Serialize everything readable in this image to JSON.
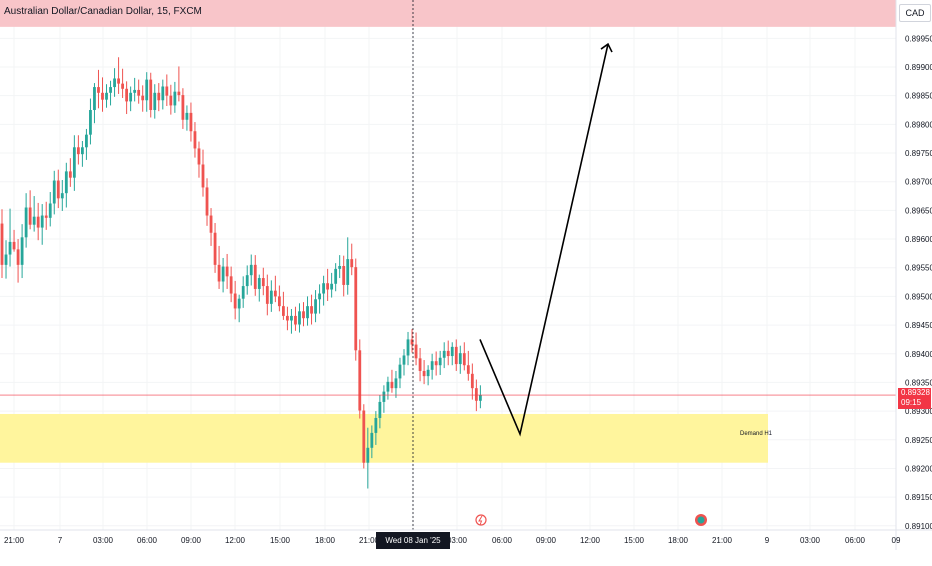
{
  "header": {
    "title": "Australian Dollar/Canadian Dollar, 15, FXCM",
    "currency": "CAD"
  },
  "price_badge": {
    "price": "0.89328",
    "countdown": "09:15"
  },
  "crosshair_time": "Wed 08 Jan '25   00:00",
  "zones": {
    "demand_label": "Demand H1"
  },
  "icons": [
    "lightning-event-icon",
    "news-event-icon"
  ],
  "colors": {
    "up": "#26a69a",
    "down": "#ef5350",
    "zone_top": "#f8c5c9",
    "zone_demand": "#fff59d",
    "price_line": "#f23645"
  },
  "chart_data": {
    "type": "candlestick",
    "title": "Australian Dollar/Canadian Dollar, 15, FXCM",
    "xlabel": "",
    "ylabel": "",
    "ylim": [
      0.8909,
      0.9003
    ],
    "y_ticks": [
      "0.89950",
      "0.89900",
      "0.89850",
      "0.89800",
      "0.89750",
      "0.89700",
      "0.89650",
      "0.89600",
      "0.89550",
      "0.89500",
      "0.89450",
      "0.89400",
      "0.89350",
      "0.89300",
      "0.89250",
      "0.89200",
      "0.89150",
      "0.89100"
    ],
    "x_ticks": [
      "21:00",
      "7",
      "03:00",
      "06:00",
      "09:00",
      "12:00",
      "15:00",
      "18:00",
      "21:00",
      "00:00",
      "03:00",
      "06:00",
      "09:00",
      "12:00",
      "15:00",
      "18:00",
      "21:00",
      "9",
      "03:00",
      "06:00",
      "09"
    ],
    "last_price": 0.89328,
    "crosshair_x": "Wed 08 Jan '25 00:00",
    "supply_zone": [
      0.8997,
      0.9003
    ],
    "demand_zone": [
      0.8921,
      0.89295
    ],
    "demand_label": "Demand H1",
    "projection": [
      [
        0.89425,
        0.8926
      ],
      [
        0.8926,
        0.8994
      ]
    ],
    "candles": [
      [
        0.89627,
        0.89652,
        0.89532,
        0.89555
      ],
      [
        0.89555,
        0.89598,
        0.89531,
        0.89573
      ],
      [
        0.89573,
        0.89653,
        0.89552,
        0.89595
      ],
      [
        0.89595,
        0.89616,
        0.89578,
        0.89582
      ],
      [
        0.89582,
        0.896,
        0.89524,
        0.89555
      ],
      [
        0.89555,
        0.89626,
        0.89532,
        0.89603
      ],
      [
        0.89603,
        0.8968,
        0.89585,
        0.89655
      ],
      [
        0.89655,
        0.89685,
        0.89617,
        0.89625
      ],
      [
        0.89625,
        0.89675,
        0.89613,
        0.89639
      ],
      [
        0.89639,
        0.89663,
        0.89598,
        0.8962
      ],
      [
        0.8962,
        0.89661,
        0.8959,
        0.89641
      ],
      [
        0.89641,
        0.89665,
        0.89616,
        0.89637
      ],
      [
        0.89637,
        0.89682,
        0.89622,
        0.89662
      ],
      [
        0.89662,
        0.89719,
        0.89643,
        0.89702
      ],
      [
        0.89702,
        0.89721,
        0.89654,
        0.89671
      ],
      [
        0.89671,
        0.89703,
        0.89649,
        0.8968
      ],
      [
        0.8968,
        0.89733,
        0.89655,
        0.89718
      ],
      [
        0.89718,
        0.89741,
        0.89691,
        0.89707
      ],
      [
        0.89707,
        0.89781,
        0.89684,
        0.8976
      ],
      [
        0.8976,
        0.89781,
        0.8973,
        0.89748
      ],
      [
        0.89748,
        0.89771,
        0.89726,
        0.8976
      ],
      [
        0.8976,
        0.89792,
        0.89738,
        0.89782
      ],
      [
        0.89782,
        0.89845,
        0.89765,
        0.89825
      ],
      [
        0.89825,
        0.89872,
        0.89802,
        0.89865
      ],
      [
        0.89865,
        0.89895,
        0.89828,
        0.89855
      ],
      [
        0.89855,
        0.89882,
        0.89822,
        0.89843
      ],
      [
        0.89843,
        0.8987,
        0.89829,
        0.89855
      ],
      [
        0.89855,
        0.89876,
        0.89833,
        0.89865
      ],
      [
        0.89865,
        0.89898,
        0.89848,
        0.8988
      ],
      [
        0.8988,
        0.89917,
        0.89853,
        0.89871
      ],
      [
        0.89871,
        0.89897,
        0.89846,
        0.89862
      ],
      [
        0.89862,
        0.89875,
        0.89818,
        0.8984
      ],
      [
        0.8984,
        0.89866,
        0.89823,
        0.89855
      ],
      [
        0.89855,
        0.89881,
        0.8984,
        0.8986
      ],
      [
        0.8986,
        0.89878,
        0.89836,
        0.8985
      ],
      [
        0.8985,
        0.89868,
        0.89822,
        0.89842
      ],
      [
        0.89842,
        0.89891,
        0.89822,
        0.89878
      ],
      [
        0.89878,
        0.8989,
        0.89812,
        0.89825
      ],
      [
        0.89825,
        0.8987,
        0.8981,
        0.89855
      ],
      [
        0.89855,
        0.89872,
        0.89823,
        0.89842
      ],
      [
        0.89842,
        0.89878,
        0.89826,
        0.89866
      ],
      [
        0.89866,
        0.89887,
        0.89832,
        0.8985
      ],
      [
        0.8985,
        0.89869,
        0.89817,
        0.89833
      ],
      [
        0.89833,
        0.89874,
        0.8982,
        0.89857
      ],
      [
        0.89857,
        0.89901,
        0.8984,
        0.89851
      ],
      [
        0.89851,
        0.89863,
        0.89792,
        0.89808
      ],
      [
        0.89808,
        0.89833,
        0.89789,
        0.8982
      ],
      [
        0.8982,
        0.89838,
        0.8977,
        0.89788
      ],
      [
        0.89788,
        0.89804,
        0.89742,
        0.89758
      ],
      [
        0.89758,
        0.8977,
        0.89707,
        0.8973
      ],
      [
        0.8973,
        0.89756,
        0.89674,
        0.8969
      ],
      [
        0.8969,
        0.89706,
        0.89623,
        0.89641
      ],
      [
        0.89641,
        0.89654,
        0.89588,
        0.89611
      ],
      [
        0.89611,
        0.89628,
        0.89541,
        0.89555
      ],
      [
        0.89555,
        0.89588,
        0.89513,
        0.89526
      ],
      [
        0.89526,
        0.89567,
        0.89507,
        0.89552
      ],
      [
        0.89552,
        0.89574,
        0.89513,
        0.89535
      ],
      [
        0.89535,
        0.89552,
        0.8949,
        0.89505
      ],
      [
        0.89505,
        0.89527,
        0.8946,
        0.89479
      ],
      [
        0.89479,
        0.89503,
        0.89455,
        0.89496
      ],
      [
        0.89496,
        0.89535,
        0.8948,
        0.89518
      ],
      [
        0.89518,
        0.89554,
        0.89503,
        0.89537
      ],
      [
        0.89537,
        0.89573,
        0.89519,
        0.89555
      ],
      [
        0.89555,
        0.89572,
        0.89501,
        0.89513
      ],
      [
        0.89513,
        0.89538,
        0.89491,
        0.89532
      ],
      [
        0.89532,
        0.8955,
        0.89502,
        0.89518
      ],
      [
        0.89518,
        0.89538,
        0.89467,
        0.89487
      ],
      [
        0.89487,
        0.89528,
        0.89473,
        0.8951
      ],
      [
        0.8951,
        0.89536,
        0.8949,
        0.895
      ],
      [
        0.895,
        0.89519,
        0.89474,
        0.89483
      ],
      [
        0.89483,
        0.89508,
        0.89459,
        0.89466
      ],
      [
        0.89466,
        0.89482,
        0.89441,
        0.89458
      ],
      [
        0.89458,
        0.89478,
        0.89435,
        0.89466
      ],
      [
        0.89466,
        0.89482,
        0.8944,
        0.89451
      ],
      [
        0.89451,
        0.89488,
        0.89437,
        0.89474
      ],
      [
        0.89474,
        0.8949,
        0.89448,
        0.89462
      ],
      [
        0.89462,
        0.895,
        0.89449,
        0.89483
      ],
      [
        0.89483,
        0.89503,
        0.89451,
        0.8947
      ],
      [
        0.8947,
        0.89511,
        0.89455,
        0.89495
      ],
      [
        0.89495,
        0.89521,
        0.8947,
        0.89505
      ],
      [
        0.89505,
        0.89536,
        0.89484,
        0.89523
      ],
      [
        0.89523,
        0.89548,
        0.89492,
        0.89512
      ],
      [
        0.89512,
        0.89541,
        0.89498,
        0.89522
      ],
      [
        0.89522,
        0.89558,
        0.89509,
        0.89548
      ],
      [
        0.89548,
        0.89572,
        0.89532,
        0.89553
      ],
      [
        0.89553,
        0.89571,
        0.895,
        0.8952
      ],
      [
        0.8952,
        0.89603,
        0.89503,
        0.89565
      ],
      [
        0.89565,
        0.89592,
        0.89537,
        0.89551
      ],
      [
        0.89551,
        0.89566,
        0.89388,
        0.89406
      ],
      [
        0.89406,
        0.89425,
        0.89287,
        0.89301
      ],
      [
        0.89301,
        0.89312,
        0.892,
        0.8921
      ],
      [
        0.8921,
        0.89271,
        0.89165,
        0.89236
      ],
      [
        0.89236,
        0.89275,
        0.89218,
        0.89262
      ],
      [
        0.89262,
        0.893,
        0.89241,
        0.89288
      ],
      [
        0.89288,
        0.89328,
        0.8927,
        0.89316
      ],
      [
        0.89316,
        0.89345,
        0.89297,
        0.89334
      ],
      [
        0.89334,
        0.8936,
        0.8932,
        0.89351
      ],
      [
        0.89351,
        0.89372,
        0.89332,
        0.8934
      ],
      [
        0.8934,
        0.8937,
        0.89323,
        0.89357
      ],
      [
        0.89357,
        0.89393,
        0.8934,
        0.89381
      ],
      [
        0.89381,
        0.89408,
        0.89362,
        0.89397
      ],
      [
        0.89397,
        0.89438,
        0.8938,
        0.89425
      ],
      [
        0.89425,
        0.89443,
        0.89402,
        0.89416
      ],
      [
        0.89416,
        0.89437,
        0.8938,
        0.89392
      ],
      [
        0.89392,
        0.8941,
        0.89352,
        0.8937
      ],
      [
        0.8937,
        0.89389,
        0.89347,
        0.89361
      ],
      [
        0.89361,
        0.8938,
        0.89345,
        0.89372
      ],
      [
        0.89372,
        0.894,
        0.89355,
        0.89387
      ],
      [
        0.89387,
        0.89404,
        0.89362,
        0.8938
      ],
      [
        0.8938,
        0.89405,
        0.89363,
        0.89393
      ],
      [
        0.89393,
        0.8942,
        0.89375,
        0.89405
      ],
      [
        0.89405,
        0.89423,
        0.8938,
        0.89396
      ],
      [
        0.89396,
        0.8942,
        0.8938,
        0.89412
      ],
      [
        0.89412,
        0.89425,
        0.8937,
        0.89382
      ],
      [
        0.89382,
        0.89414,
        0.89365,
        0.89401
      ],
      [
        0.89401,
        0.8942,
        0.89371,
        0.8938
      ],
      [
        0.8938,
        0.89405,
        0.89353,
        0.89365
      ],
      [
        0.89365,
        0.89383,
        0.8932,
        0.8934
      ],
      [
        0.8934,
        0.89355,
        0.893,
        0.89318
      ],
      [
        0.89318,
        0.89345,
        0.89305,
        0.89328
      ]
    ]
  }
}
